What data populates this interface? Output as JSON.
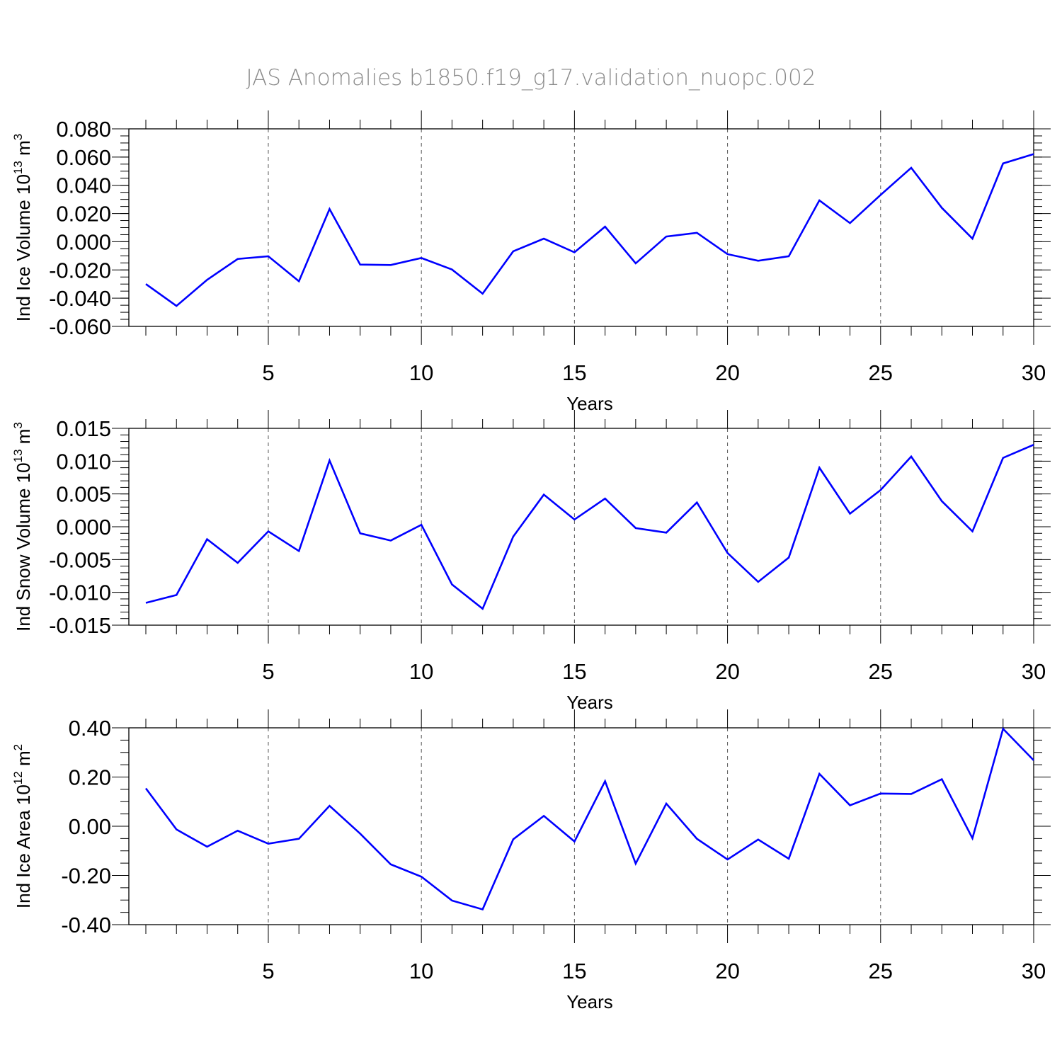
{
  "title": "JAS Anomalies b1850.f19_g17.validation_nuopc.002",
  "colors": {
    "line": "#0000ff",
    "axis": "#000000",
    "grid": "#555555"
  },
  "chart_data": [
    {
      "type": "line",
      "title": "",
      "ylabel": {
        "main": "Ind Ice Volume 10",
        "sup": "13",
        "unit": " m",
        "unit_sup": "3"
      },
      "xlabel": "Years",
      "xlim": [
        1,
        30
      ],
      "ylim": [
        -0.06,
        0.08
      ],
      "xticks": [
        5,
        10,
        15,
        20,
        25,
        30
      ],
      "yticks": [
        -0.06,
        -0.04,
        -0.02,
        0.0,
        0.02,
        0.04,
        0.06,
        0.08
      ],
      "ytick_labels": [
        "-0.060",
        "-0.040",
        "-0.020",
        "0.000",
        "0.020",
        "0.040",
        "0.060",
        "0.080"
      ],
      "y_minor_step": 0.005,
      "grid_x": [
        5,
        10,
        15,
        20,
        25
      ],
      "x": [
        1,
        2,
        3,
        4,
        5,
        6,
        7,
        8,
        9,
        10,
        11,
        12,
        13,
        14,
        15,
        16,
        17,
        18,
        19,
        20,
        21,
        22,
        23,
        24,
        25,
        26,
        27,
        28,
        29,
        30
      ],
      "values": [
        -0.03,
        -0.0455,
        -0.027,
        -0.0122,
        -0.0103,
        -0.028,
        0.0232,
        -0.0162,
        -0.0165,
        -0.0115,
        -0.0197,
        -0.0368,
        -0.0068,
        0.0022,
        -0.0075,
        0.0107,
        -0.0153,
        0.0037,
        0.0063,
        -0.0088,
        -0.0135,
        -0.0103,
        0.0293,
        0.0132,
        0.0332,
        0.0524,
        0.024,
        0.0022,
        0.0555,
        0.0621
      ]
    },
    {
      "type": "line",
      "title": "",
      "ylabel": {
        "main": "Ind Snow Volume 10",
        "sup": "13",
        "unit": " m",
        "unit_sup": "3"
      },
      "xlabel": "Years",
      "xlim": [
        1,
        30
      ],
      "ylim": [
        -0.015,
        0.015
      ],
      "xticks": [
        5,
        10,
        15,
        20,
        25,
        30
      ],
      "yticks": [
        -0.015,
        -0.01,
        -0.005,
        0.0,
        0.005,
        0.01,
        0.015
      ],
      "ytick_labels": [
        "-0.015",
        "-0.010",
        "-0.005",
        "0.000",
        "0.005",
        "0.010",
        "0.015"
      ],
      "y_minor_step": 0.001,
      "grid_x": [
        5,
        10,
        15,
        20,
        25
      ],
      "x": [
        1,
        2,
        3,
        4,
        5,
        6,
        7,
        8,
        9,
        10,
        11,
        12,
        13,
        14,
        15,
        16,
        17,
        18,
        19,
        20,
        21,
        22,
        23,
        24,
        25,
        26,
        27,
        28,
        29,
        30
      ],
      "values": [
        -0.0116,
        -0.0104,
        -0.0019,
        -0.0055,
        -0.0007,
        -0.0037,
        0.0101,
        -0.001,
        -0.0021,
        0.0003,
        -0.0088,
        -0.0125,
        -0.0015,
        0.0049,
        0.0011,
        0.0043,
        -0.0002,
        -0.0009,
        0.0037,
        -0.004,
        -0.0084,
        -0.0047,
        0.009,
        0.002,
        0.0056,
        0.0107,
        0.0039,
        -0.0007,
        0.0105,
        0.0125
      ]
    },
    {
      "type": "line",
      "title": "",
      "ylabel": {
        "main": "Ind Ice Area 10",
        "sup": "12",
        "unit": " m",
        "unit_sup": "2"
      },
      "xlabel": "Years",
      "xlim": [
        1,
        30
      ],
      "ylim": [
        -0.4,
        0.4
      ],
      "xticks": [
        5,
        10,
        15,
        20,
        25,
        30
      ],
      "yticks": [
        -0.4,
        -0.2,
        0.0,
        0.2,
        0.4
      ],
      "ytick_labels": [
        "-0.40",
        "-0.20",
        "0.00",
        "0.20",
        "0.40"
      ],
      "y_minor_step": 0.05,
      "grid_x": [
        5,
        10,
        15,
        20,
        25
      ],
      "x": [
        1,
        2,
        3,
        4,
        5,
        6,
        7,
        8,
        9,
        10,
        11,
        12,
        13,
        14,
        15,
        16,
        17,
        18,
        19,
        20,
        21,
        22,
        23,
        24,
        25,
        26,
        27,
        28,
        29,
        30
      ],
      "values": [
        0.154,
        -0.013,
        -0.083,
        -0.018,
        -0.071,
        -0.051,
        0.083,
        -0.03,
        -0.155,
        -0.205,
        -0.302,
        -0.338,
        -0.053,
        0.042,
        -0.062,
        0.183,
        -0.152,
        0.092,
        -0.051,
        -0.135,
        -0.054,
        -0.132,
        0.213,
        0.085,
        0.133,
        0.131,
        0.191,
        -0.049,
        0.396,
        0.268
      ]
    }
  ]
}
